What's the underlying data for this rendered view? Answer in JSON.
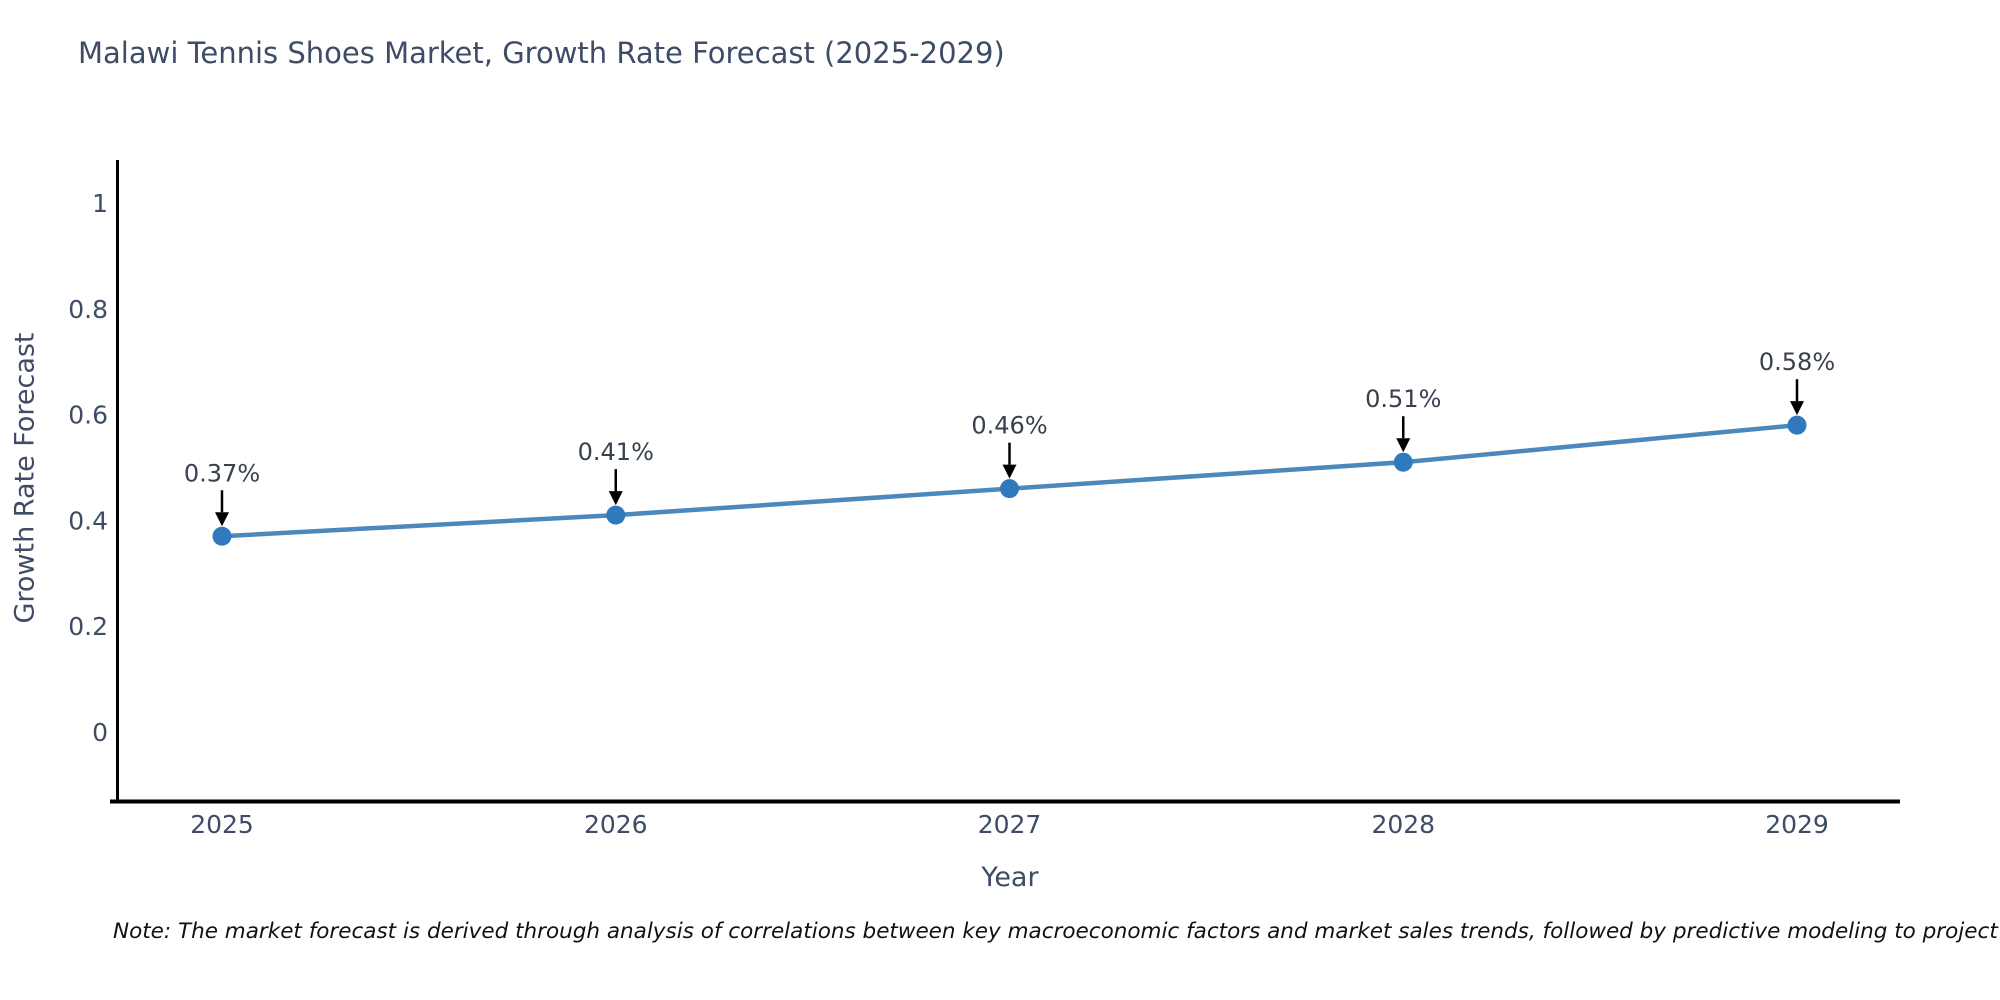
{
  "title": "Malawi Tennis Shoes Market, Growth Rate Forecast (2025-2029)",
  "note": "Note: The market forecast is derived through analysis of correlations between key macroeconomic factors and market sales trends, followed by predictive modeling to project future sales",
  "colors": {
    "title_text": "#3f4c66",
    "axis_text": "#3f4c66",
    "annotation_text": "#38414f",
    "axis_line": "#000000",
    "arrow": "#000000",
    "line": "#4d88bb",
    "marker": "#3179bd",
    "background": "#ffffff"
  },
  "chart_data": {
    "type": "line",
    "title": "Malawi Tennis Shoes Market, Growth Rate Forecast (2025-2029)",
    "xlabel": "Year",
    "ylabel": "Growth Rate Forecast",
    "x": [
      2025,
      2026,
      2027,
      2028,
      2029
    ],
    "y": [
      0.37,
      0.41,
      0.46,
      0.51,
      0.58
    ],
    "point_labels": [
      "0.37%",
      "0.41%",
      "0.46%",
      "0.51%",
      "0.58%"
    ],
    "xtick_labels": [
      "2025",
      "2026",
      "2027",
      "2028",
      "2029"
    ],
    "ytick_values": [
      0,
      0.2,
      0.4,
      0.6,
      0.8,
      1
    ],
    "ytick_labels": [
      "0",
      "0.2",
      "0.4",
      "0.6",
      "0.8",
      "1"
    ],
    "ylim": [
      -0.13,
      1.21
    ],
    "grid": false,
    "legend": "none",
    "marker_style": "circle",
    "annotations_have_arrows": true
  }
}
